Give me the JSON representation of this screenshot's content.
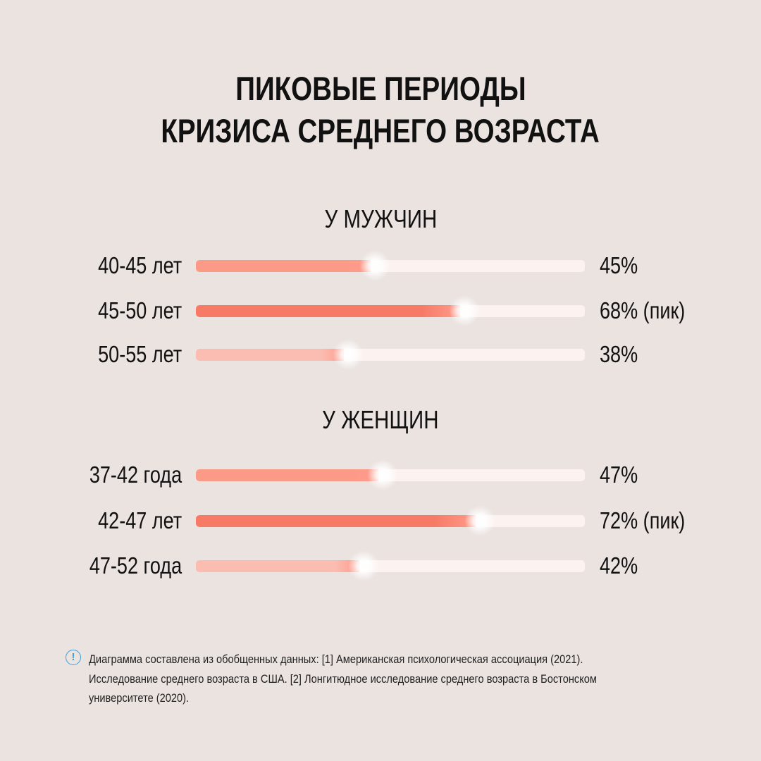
{
  "title": [
    "ПИКОВЫЕ ПЕРИОДЫ",
    "КРИЗИСА СРЕДНЕГО ВОЗРАСТА"
  ],
  "colors": {
    "background": "#ebe3e0",
    "track": "#fcf3f1",
    "bar": "#fc9a88",
    "bar_peak": "#f67a66",
    "bar_light": "#fbbcb2",
    "info": "#3aa0e0"
  },
  "chart_data": [
    {
      "type": "bar",
      "orientation": "horizontal",
      "title": "У МУЖЧИН",
      "categories": [
        "40-45 лет",
        "45-50 лет",
        "50-55 лет"
      ],
      "values": [
        45,
        68,
        38
      ],
      "value_labels": [
        "45%",
        "68% (пик)",
        "38%"
      ],
      "bar_colors": [
        "#fc9a88",
        "#f67a66",
        "#fbbcb2"
      ],
      "xlim": [
        0,
        100
      ]
    },
    {
      "type": "bar",
      "orientation": "horizontal",
      "title": "У ЖЕНЩИН",
      "categories": [
        "37-42 года",
        "42-47 лет",
        "47-52 года"
      ],
      "values": [
        47,
        72,
        42
      ],
      "value_labels": [
        "47%",
        "72% (пик)",
        "42%"
      ],
      "bar_colors": [
        "#fc9a88",
        "#f67a66",
        "#fbbcb2"
      ],
      "xlim": [
        0,
        100
      ]
    }
  ],
  "footnote": {
    "icon": "info-icon",
    "icon_glyph": "!",
    "lines": [
      "Диаграмма составлена из обобщенных данных: [1] Американская психологическая ассоциация (2021).",
      "Исследование среднего возраста в США. [2] Лонгитюдное исследование среднего возраста в Бостонском",
      "университете (2020)."
    ]
  }
}
